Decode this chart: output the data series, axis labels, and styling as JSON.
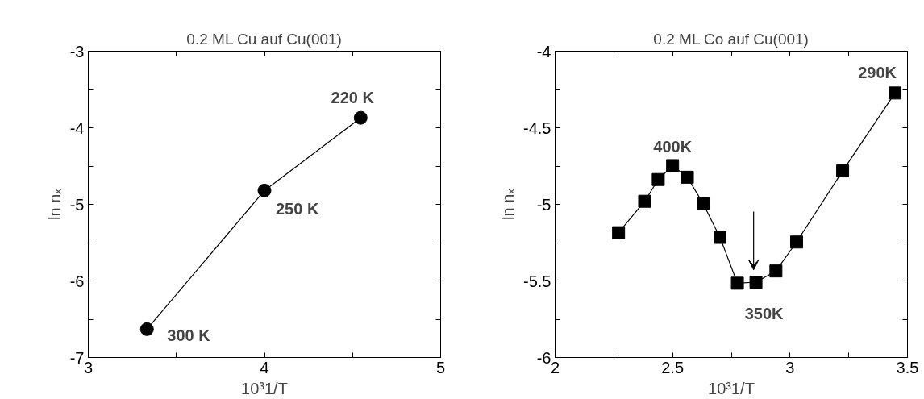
{
  "chart_data": [
    {
      "type": "line",
      "title": "0.2 ML Cu auf Cu(001)",
      "xlabel": "10³1/T",
      "ylabel": "ln nₓ",
      "marker": "circle",
      "grid": false,
      "x": [
        3.333,
        4.0,
        4.546
      ],
      "series": [
        {
          "color": "#000000",
          "values": [
            -6.63,
            -4.82,
            -3.87
          ]
        }
      ],
      "xlim": [
        3,
        5
      ],
      "ylim": [
        -7,
        -3
      ],
      "xticks": [
        3,
        {
          "value": 3.5,
          "label": null
        },
        4,
        {
          "value": 4.5,
          "label": null
        },
        5
      ],
      "yticks": [
        -7,
        {
          "value": -6.5,
          "label": null
        },
        -6,
        {
          "value": -5.5,
          "label": null
        },
        -5,
        {
          "value": -4.5,
          "label": null
        },
        -4,
        {
          "value": -3.5,
          "label": null
        },
        -3
      ],
      "annotations": [
        {
          "text": "300 K",
          "x": 3.333,
          "y": -6.63
        },
        {
          "text": "250 K",
          "x": 4.0,
          "y": -4.82
        },
        {
          "text": "220 K",
          "x": 4.546,
          "y": -3.87
        }
      ]
    },
    {
      "type": "line",
      "title": "0.2 ML Co auf Cu(001)",
      "xlabel": "10³1/T",
      "ylabel": "ln nₓ",
      "marker": "square",
      "grid": false,
      "x": [
        2.27,
        2.381,
        2.439,
        2.5,
        2.563,
        2.63,
        2.702,
        2.776,
        2.855,
        2.94,
        3.028,
        3.224,
        3.447
      ],
      "series": [
        {
          "color": "#000000",
          "values": [
            -5.185,
            -4.98,
            -4.838,
            -4.747,
            -4.823,
            -4.995,
            -5.216,
            -5.515,
            -5.508,
            -5.435,
            -5.246,
            -4.782,
            -4.273
          ]
        }
      ],
      "xlim": [
        2,
        3.5
      ],
      "ylim": [
        -6,
        -4
      ],
      "xticks": [
        2,
        {
          "value": 2.25,
          "label": null
        },
        2.5,
        {
          "value": 2.75,
          "label": null
        },
        3,
        {
          "value": 3.25,
          "label": null
        },
        3.5
      ],
      "yticks": [
        -6,
        {
          "value": -5.75,
          "label": null
        },
        -5.5,
        {
          "value": -5.25,
          "label": null
        },
        -5,
        {
          "value": -4.75,
          "label": null
        },
        -4.5,
        {
          "value": -4.25,
          "label": null
        },
        -4
      ],
      "annotations": [
        {
          "text": "400K",
          "x": 2.5,
          "y": -4.747
        },
        {
          "text": "350K",
          "x": 2.855,
          "y": -5.508
        },
        {
          "text": "290K",
          "x": 3.447,
          "y": -4.273
        }
      ]
    }
  ]
}
